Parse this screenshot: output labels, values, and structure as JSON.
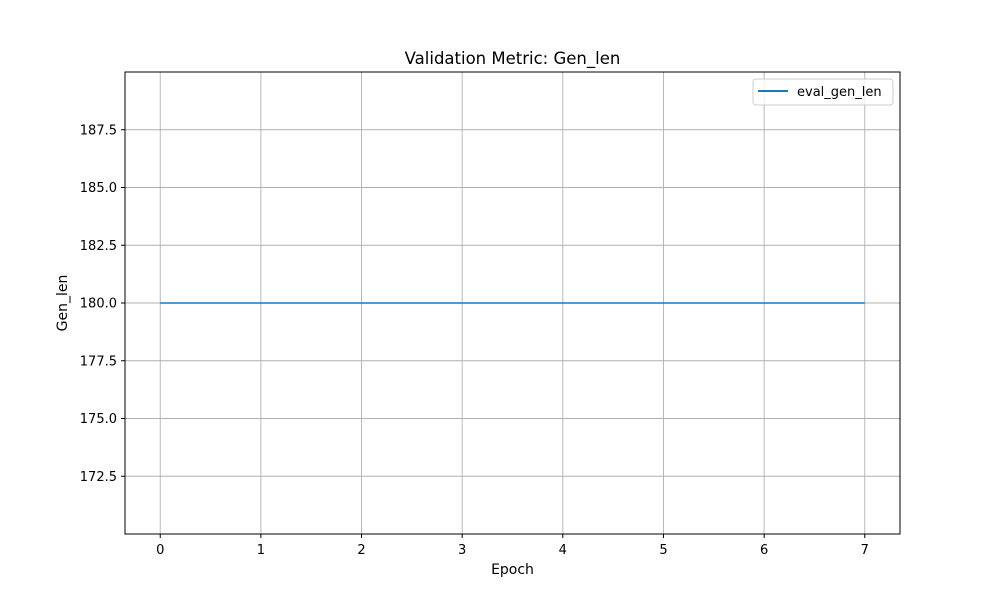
{
  "chart_data": {
    "type": "line",
    "title": "Validation Metric: Gen_len",
    "xlabel": "Epoch",
    "ylabel": "Gen_len",
    "x": [
      0,
      1,
      2,
      3,
      4,
      5,
      6,
      7
    ],
    "series": [
      {
        "name": "eval_gen_len",
        "values": [
          180.0,
          180.0,
          180.0,
          180.0,
          180.0,
          180.0,
          180.0,
          180.0
        ],
        "color": "#1f77b4"
      }
    ],
    "xlim": [
      -0.35,
      7.35
    ],
    "ylim": [
      170.0,
      190.0
    ],
    "xticks": [
      0,
      1,
      2,
      3,
      4,
      5,
      6,
      7
    ],
    "yticks": [
      172.5,
      175.0,
      177.5,
      180.0,
      182.5,
      185.0,
      187.5
    ],
    "xtick_labels": [
      "0",
      "1",
      "2",
      "3",
      "4",
      "5",
      "6",
      "7"
    ],
    "ytick_labels": [
      "172.5",
      "175.0",
      "177.5",
      "180.0",
      "182.5",
      "185.0",
      "187.5"
    ],
    "grid": true,
    "legend_position": "top-right"
  }
}
